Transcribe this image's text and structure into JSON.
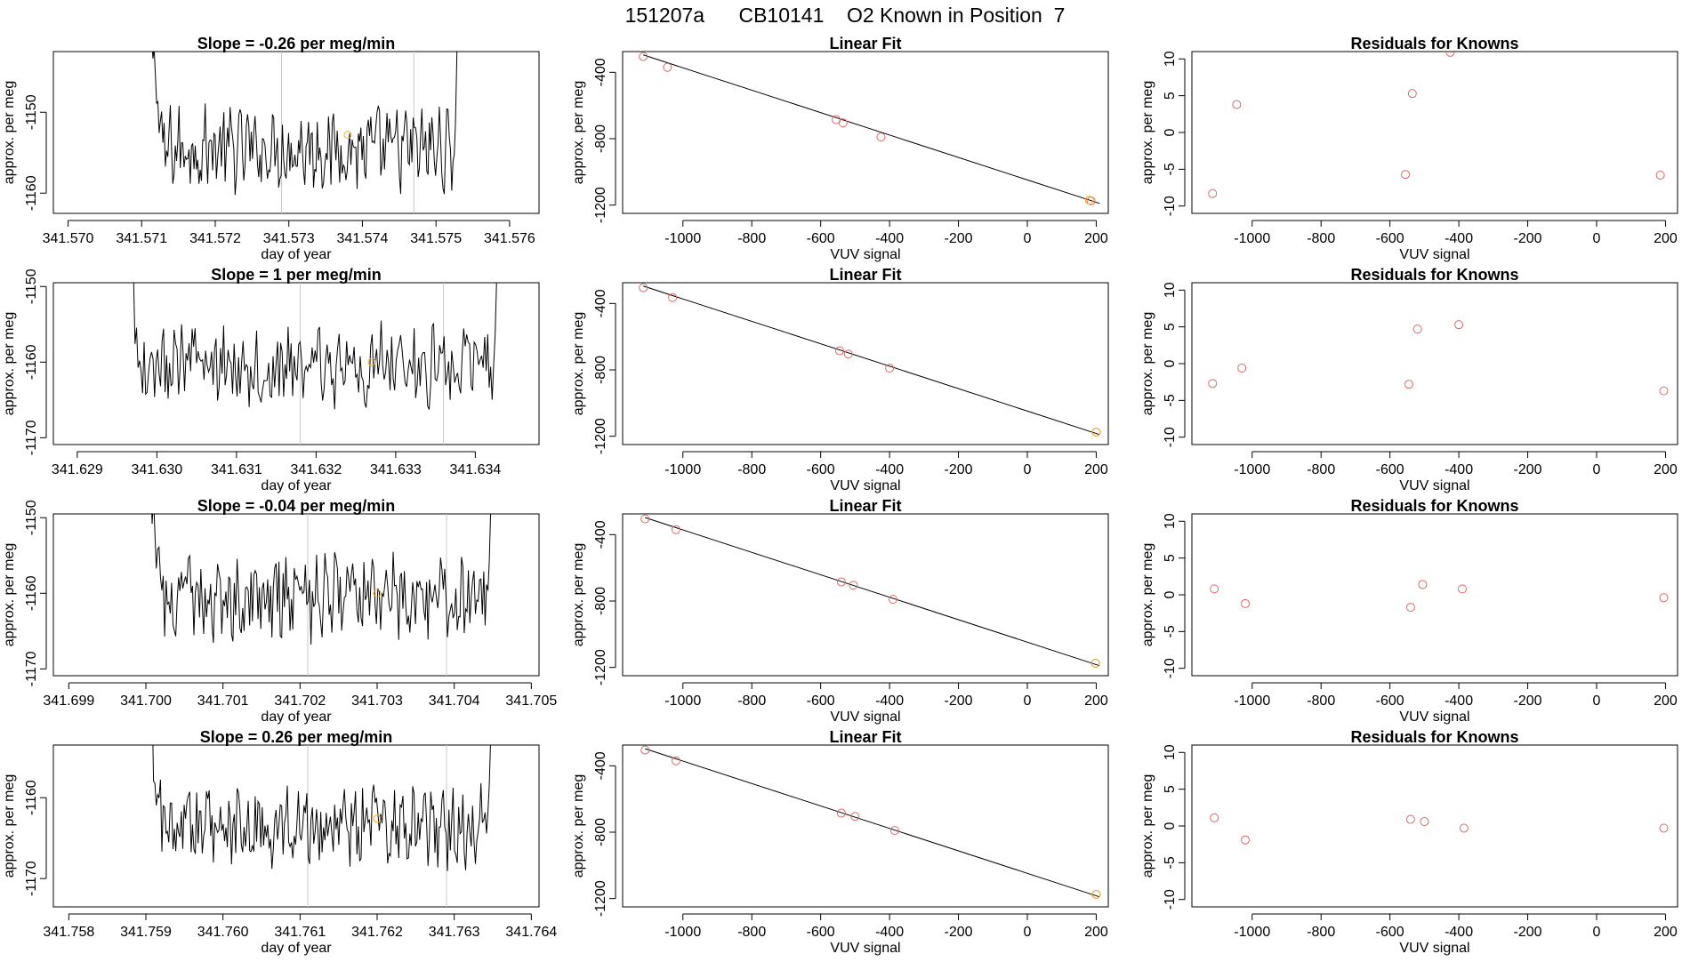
{
  "page": {
    "title_parts": [
      "151207a",
      "CB10141",
      "O2 Known in Position  7"
    ],
    "point_color": "#e06666",
    "marker_color": "#f5a623",
    "line_color": "#000000",
    "vline_color": "#c8c8c8"
  },
  "chart_data": [
    {
      "type": "line",
      "panel": "trace",
      "row": 1,
      "title": "Slope =  -0.26  per meg/min",
      "xlabel": "day of year",
      "ylabel": "approx. per meg",
      "xlim": [
        341.5698,
        341.5764
      ],
      "ylim": [
        -1162.5,
        -1142.5
      ],
      "xticks": [
        341.57,
        341.571,
        341.572,
        341.573,
        341.574,
        341.575,
        341.576
      ],
      "xtick_labels": [
        "341.570",
        "341.571",
        "341.572",
        "341.573",
        "341.574",
        "341.575",
        "341.576"
      ],
      "yticks": [
        -1150,
        -1160
      ],
      "ytick_labels": [
        "-1150",
        "-1160"
      ],
      "trace_start": 341.571,
      "trace_end": 341.5754,
      "baseline": -1154.5,
      "vlines": [
        341.5729,
        341.5747
      ],
      "marker": {
        "x": 341.5738,
        "y": -1152.8
      }
    },
    {
      "type": "scatter",
      "panel": "fit",
      "row": 1,
      "title": "Linear Fit",
      "xlabel": "VUV signal",
      "ylabel": "approx. per meg",
      "xlim": [
        -1175,
        235
      ],
      "ylim": [
        -1250,
        -275
      ],
      "xticks": [
        -1000,
        -800,
        -600,
        -400,
        -200,
        0,
        200
      ],
      "xtick_labels": [
        "-1000",
        "-800",
        "-600",
        "-400",
        "-200",
        "0",
        "200"
      ],
      "yticks": [
        -400,
        -800,
        -1200
      ],
      "ytick_labels": [
        "-400",
        "-800",
        "-1200"
      ],
      "x": [
        -1115,
        -1045,
        -555,
        -535,
        -425,
        185
      ],
      "y": [
        -305,
        -370,
        -685,
        -705,
        -790,
        -1175
      ],
      "fit_line": {
        "x": [
          -1115,
          210
        ],
        "y": [
          -295,
          -1190
        ]
      },
      "marker": {
        "x": 180,
        "y": -1170
      }
    },
    {
      "type": "scatter",
      "panel": "resid",
      "row": 1,
      "title": "Residuals for Knowns",
      "xlabel": "VUV signal",
      "ylabel": "approx. per meg",
      "xlim": [
        -1175,
        235
      ],
      "ylim": [
        -11,
        11
      ],
      "xticks": [
        -1000,
        -800,
        -600,
        -400,
        -200,
        0,
        200
      ],
      "xtick_labels": [
        "-1000",
        "-800",
        "-600",
        "-400",
        "-200",
        "0",
        "200"
      ],
      "yticks": [
        10,
        5,
        0,
        -5,
        -10
      ],
      "ytick_labels": [
        "10",
        "5",
        "0",
        "-5",
        "-10"
      ],
      "x": [
        -1115,
        -1045,
        -555,
        -535,
        -425,
        185
      ],
      "y": [
        -8.3,
        3.8,
        -5.7,
        5.3,
        10.9,
        -5.8
      ]
    },
    {
      "type": "line",
      "panel": "trace",
      "row": 2,
      "title": "Slope =  1  per meg/min",
      "xlabel": "day of year",
      "ylabel": "approx. per meg",
      "xlim": [
        341.6287,
        341.6348
      ],
      "ylim": [
        -1170.9,
        -1149.5
      ],
      "xticks": [
        341.629,
        341.63,
        341.631,
        341.632,
        341.633,
        341.634
      ],
      "xtick_labels": [
        "341.629",
        "341.630",
        "341.631",
        "341.632",
        "341.633",
        "341.634"
      ],
      "yticks": [
        -1150,
        -1160,
        -1170
      ],
      "ytick_labels": [
        "-1150",
        "-1160",
        "-1170"
      ],
      "trace_start": 341.6295,
      "trace_end": 341.6344,
      "baseline": -1160.5,
      "vlines": [
        341.6318,
        341.6336
      ],
      "marker": {
        "x": 341.6327,
        "y": -1160.0
      }
    },
    {
      "type": "scatter",
      "panel": "fit",
      "row": 2,
      "title": "Linear Fit",
      "xlabel": "VUV signal",
      "ylabel": "approx. per meg",
      "xlim": [
        -1175,
        235
      ],
      "ylim": [
        -1250,
        -275
      ],
      "xticks": [
        -1000,
        -800,
        -600,
        -400,
        -200,
        0,
        200
      ],
      "xtick_labels": [
        "-1000",
        "-800",
        "-600",
        "-400",
        "-200",
        "0",
        "200"
      ],
      "yticks": [
        -400,
        -800,
        -1200
      ],
      "ytick_labels": [
        "-400",
        "-800",
        "-1200"
      ],
      "x": [
        -1115,
        -1030,
        -545,
        -520,
        -400,
        200
      ],
      "y": [
        -305,
        -365,
        -685,
        -705,
        -790,
        -1175
      ],
      "fit_line": {
        "x": [
          -1115,
          210
        ],
        "y": [
          -295,
          -1190
        ]
      },
      "marker": {
        "x": 200,
        "y": -1175
      }
    },
    {
      "type": "scatter",
      "panel": "resid",
      "row": 2,
      "title": "Residuals for Knowns",
      "xlabel": "VUV signal",
      "ylabel": "approx. per meg",
      "xlim": [
        -1175,
        235
      ],
      "ylim": [
        -11,
        11
      ],
      "xticks": [
        -1000,
        -800,
        -600,
        -400,
        -200,
        0,
        200
      ],
      "xtick_labels": [
        "-1000",
        "-800",
        "-600",
        "-400",
        "-200",
        "0",
        "200"
      ],
      "yticks": [
        10,
        5,
        0,
        -5,
        -10
      ],
      "ytick_labels": [
        "10",
        "5",
        "0",
        "-5",
        "-10"
      ],
      "x": [
        -1115,
        -1030,
        -545,
        -520,
        -400,
        195
      ],
      "y": [
        -2.7,
        -0.6,
        -2.8,
        4.7,
        5.3,
        -3.7
      ]
    },
    {
      "type": "line",
      "panel": "trace",
      "row": 3,
      "title": "Slope =  -0.04  per meg/min",
      "xlabel": "day of year",
      "ylabel": "approx. per meg",
      "xlim": [
        341.6988,
        341.7051
      ],
      "ylim": [
        -1170.9,
        -1149.5
      ],
      "xticks": [
        341.699,
        341.7,
        341.701,
        341.702,
        341.703,
        341.704,
        341.705
      ],
      "xtick_labels": [
        "341.699",
        "341.700",
        "341.701",
        "341.702",
        "341.703",
        "341.704",
        "341.705"
      ],
      "yticks": [
        -1150,
        -1160,
        -1170
      ],
      "ytick_labels": [
        "-1150",
        "-1160",
        "-1170"
      ],
      "trace_start": 341.6999,
      "trace_end": 341.7046,
      "baseline": -1160.6,
      "vlines": [
        341.7021,
        341.7039
      ],
      "marker": {
        "x": 341.703,
        "y": -1160.0
      }
    },
    {
      "type": "scatter",
      "panel": "fit",
      "row": 3,
      "title": "Linear Fit",
      "xlabel": "VUV signal",
      "ylabel": "approx. per meg",
      "xlim": [
        -1175,
        235
      ],
      "ylim": [
        -1250,
        -275
      ],
      "xticks": [
        -1000,
        -800,
        -600,
        -400,
        -200,
        0,
        200
      ],
      "xtick_labels": [
        "-1000",
        "-800",
        "-600",
        "-400",
        "-200",
        "0",
        "200"
      ],
      "yticks": [
        -400,
        -800,
        -1200
      ],
      "ytick_labels": [
        "-400",
        "-800",
        "-1200"
      ],
      "x": [
        -1110,
        -1020,
        -540,
        -505,
        -390,
        198
      ],
      "y": [
        -305,
        -370,
        -685,
        -705,
        -790,
        -1175
      ],
      "fit_line": {
        "x": [
          -1110,
          210
        ],
        "y": [
          -297,
          -1190
        ]
      },
      "marker": {
        "x": 198,
        "y": -1175
      }
    },
    {
      "type": "scatter",
      "panel": "resid",
      "row": 3,
      "title": "Residuals for Knowns",
      "xlabel": "VUV signal",
      "ylabel": "approx. per meg",
      "xlim": [
        -1175,
        235
      ],
      "ylim": [
        -11,
        11
      ],
      "xticks": [
        -1000,
        -800,
        -600,
        -400,
        -200,
        0,
        200
      ],
      "xtick_labels": [
        "-1000",
        "-800",
        "-600",
        "-400",
        "-200",
        "0",
        "200"
      ],
      "yticks": [
        10,
        5,
        0,
        -5,
        -10
      ],
      "ytick_labels": [
        "10",
        "5",
        "0",
        "-5",
        "-10"
      ],
      "x": [
        -1110,
        -1020,
        -540,
        -505,
        -390,
        195
      ],
      "y": [
        0.8,
        -1.2,
        -1.7,
        1.4,
        0.8,
        -0.4
      ]
    },
    {
      "type": "line",
      "panel": "trace",
      "row": 4,
      "title": "Slope =  0.26  per meg/min",
      "xlabel": "day of year",
      "ylabel": "approx. per meg",
      "xlim": [
        341.7578,
        341.7641
      ],
      "ylim": [
        -1173.5,
        -1153.5
      ],
      "xticks": [
        341.758,
        341.759,
        341.76,
        341.761,
        341.762,
        341.763,
        341.764
      ],
      "xtick_labels": [
        "341.758",
        "341.759",
        "341.760",
        "341.761",
        "341.762",
        "341.763",
        "341.764"
      ],
      "yticks": [
        -1160,
        -1170
      ],
      "ytick_labels": [
        "-1160",
        "-1170"
      ],
      "trace_start": 341.7589,
      "trace_end": 341.7636,
      "baseline": -1163.5,
      "vlines": [
        341.7611,
        341.7629
      ],
      "marker": {
        "x": 341.762,
        "y": -1162.6
      }
    },
    {
      "type": "scatter",
      "panel": "fit",
      "row": 4,
      "title": "Linear Fit",
      "xlabel": "VUV signal",
      "ylabel": "approx. per meg",
      "xlim": [
        -1175,
        235
      ],
      "ylim": [
        -1250,
        -275
      ],
      "xticks": [
        -1000,
        -800,
        -600,
        -400,
        -200,
        0,
        200
      ],
      "xtick_labels": [
        "-1000",
        "-800",
        "-600",
        "-400",
        "-200",
        "0",
        "200"
      ],
      "yticks": [
        -400,
        -800,
        -1200
      ],
      "ytick_labels": [
        "-400",
        "-800",
        "-1200"
      ],
      "x": [
        -1110,
        -1020,
        -540,
        -500,
        -385,
        200
      ],
      "y": [
        -305,
        -370,
        -685,
        -705,
        -790,
        -1175
      ],
      "fit_line": {
        "x": [
          -1110,
          210
        ],
        "y": [
          -297,
          -1190
        ]
      },
      "marker": {
        "x": 200,
        "y": -1175
      }
    },
    {
      "type": "scatter",
      "panel": "resid",
      "row": 4,
      "title": "Residuals for Knowns",
      "xlabel": "VUV signal",
      "ylabel": "approx. per meg",
      "xlim": [
        -1175,
        235
      ],
      "ylim": [
        -11,
        11
      ],
      "xticks": [
        -1000,
        -800,
        -600,
        -400,
        -200,
        0,
        200
      ],
      "xtick_labels": [
        "-1000",
        "-800",
        "-600",
        "-400",
        "-200",
        "0",
        "200"
      ],
      "yticks": [
        10,
        5,
        0,
        -5,
        -10
      ],
      "ytick_labels": [
        "10",
        "5",
        "0",
        "-5",
        "-10"
      ],
      "x": [
        -1110,
        -1020,
        -540,
        -500,
        -385,
        195
      ],
      "y": [
        1.1,
        -1.9,
        0.9,
        0.6,
        -0.3,
        -0.3
      ]
    }
  ]
}
